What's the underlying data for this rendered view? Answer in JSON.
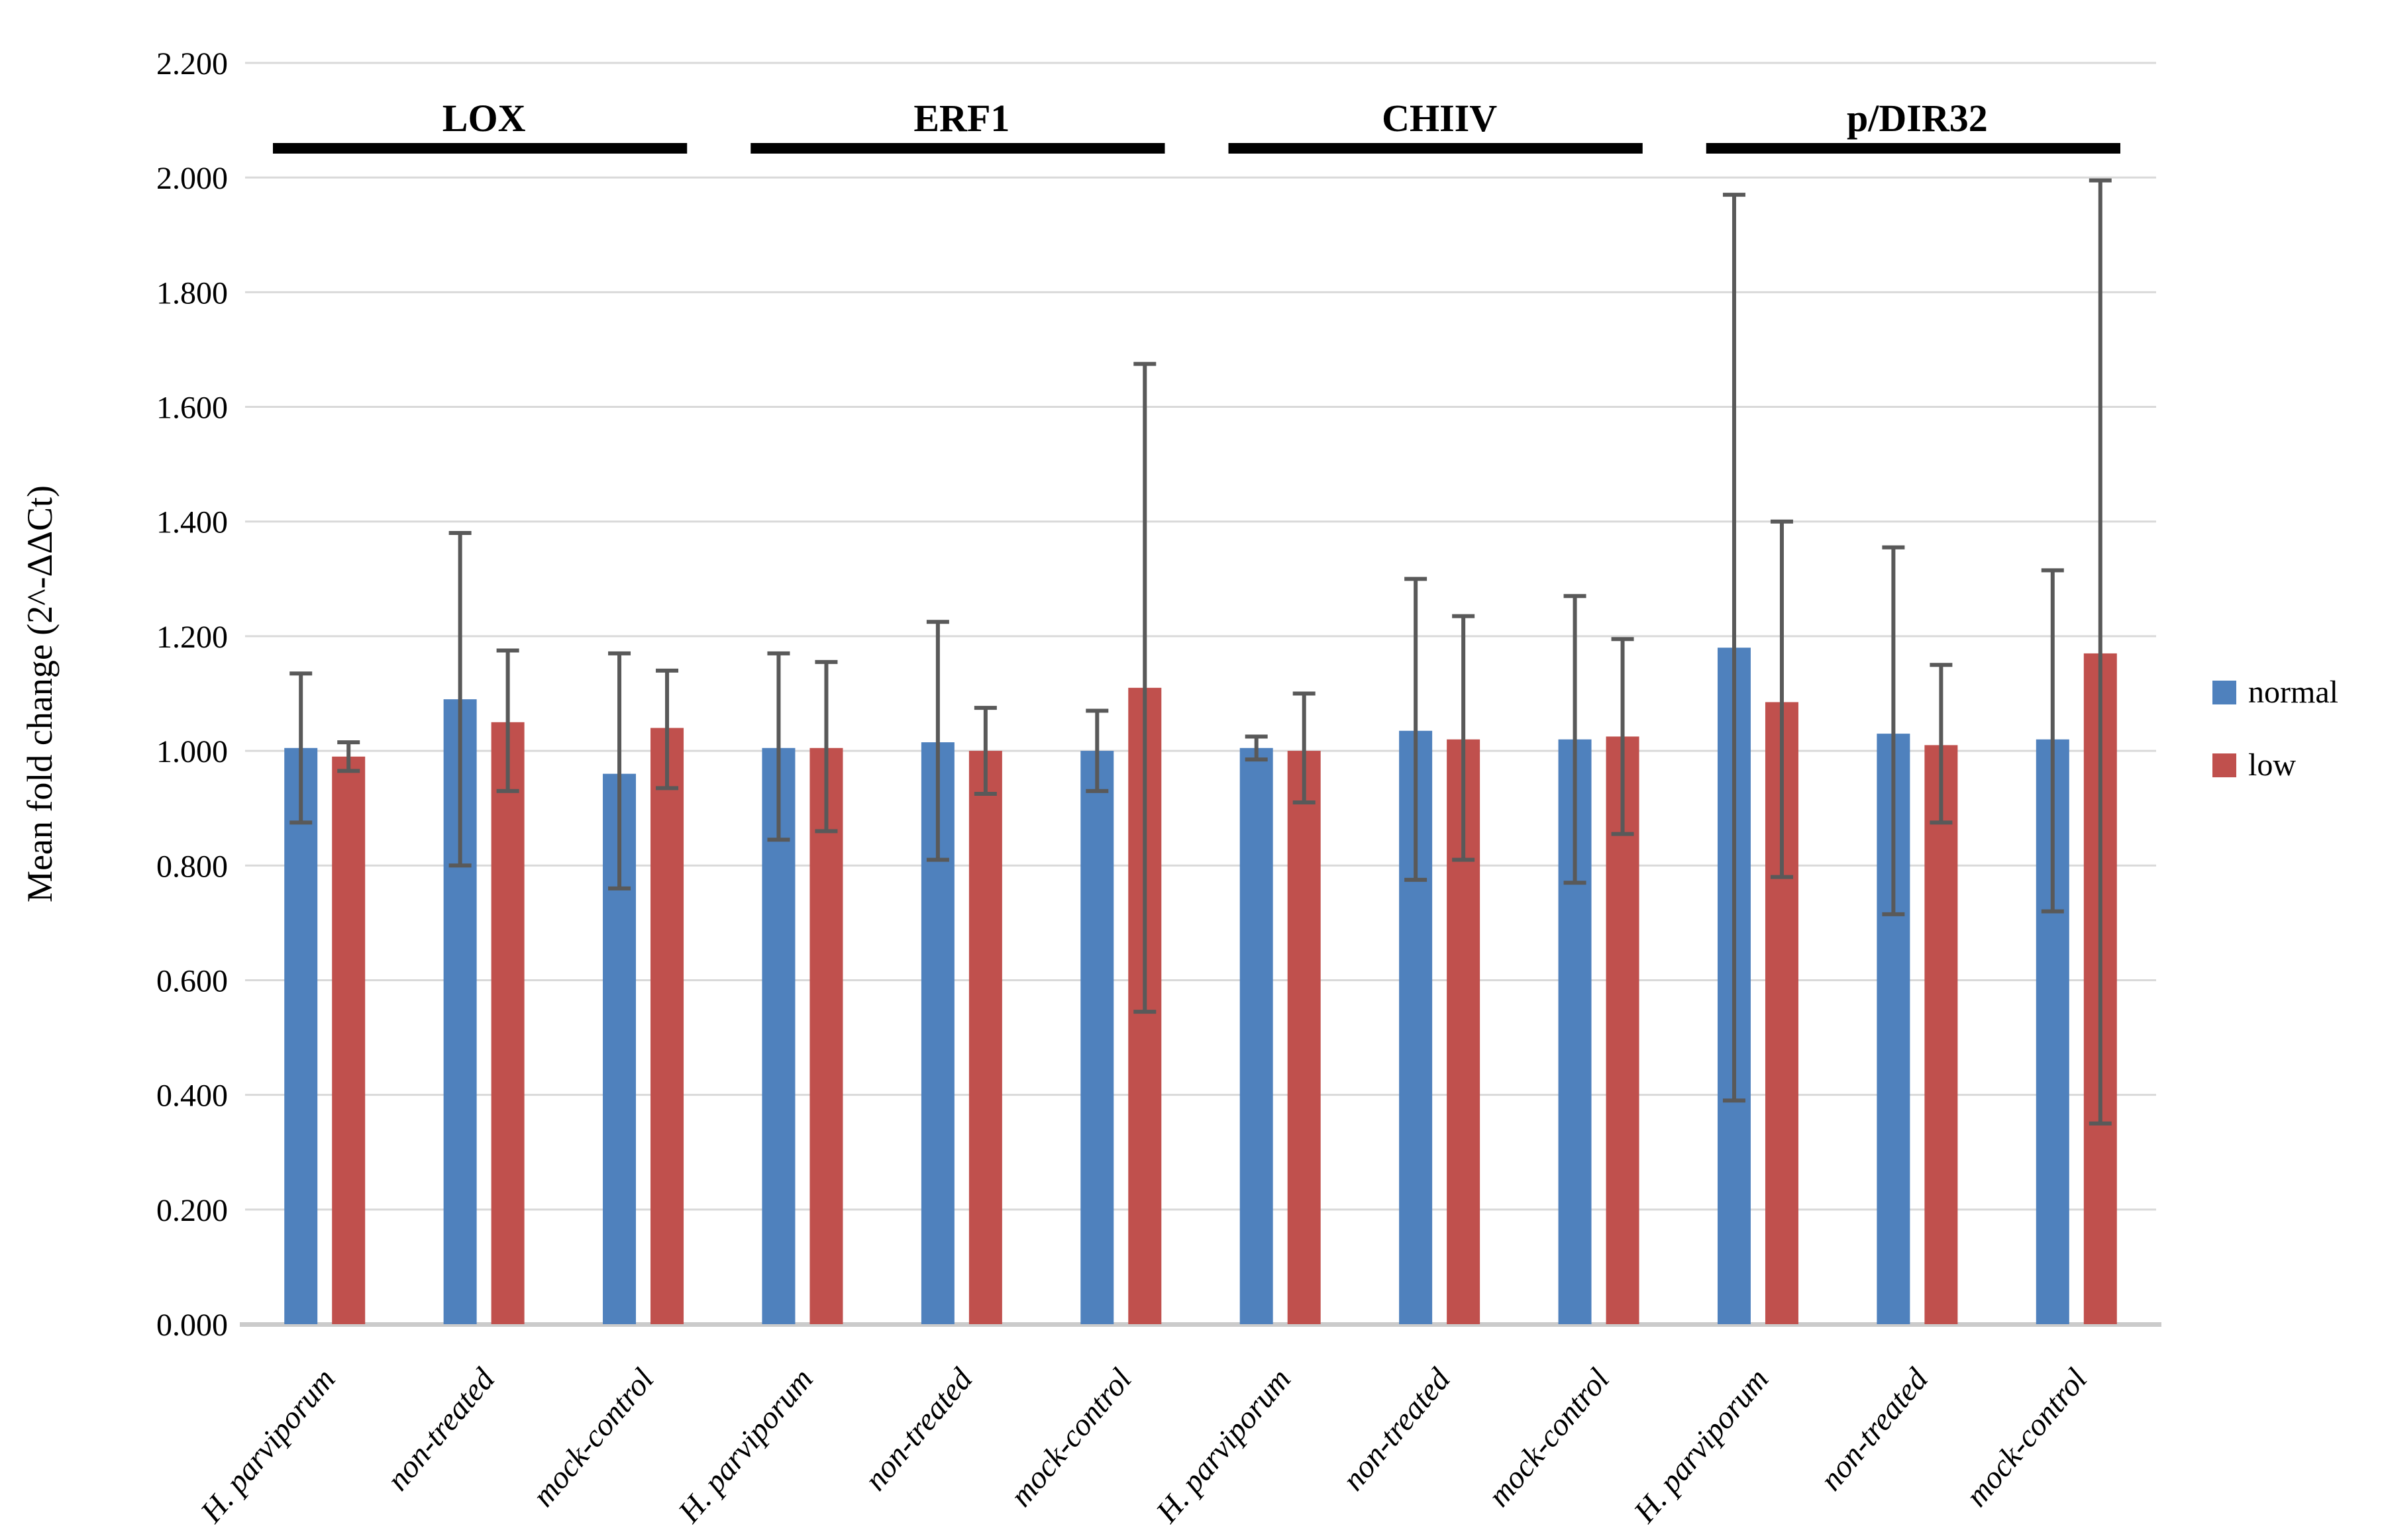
{
  "chart_data": {
    "type": "bar",
    "title": "",
    "ylabel": "Mean fold change (2^-ΔΔCt)",
    "xlabel": "",
    "ylim": [
      0,
      2.2
    ],
    "ytick_step": 0.2,
    "ytick_decimals": 3,
    "grid": true,
    "legend_position": "right",
    "series": [
      {
        "name": "normal",
        "color": "#4F81BD"
      },
      {
        "name": "low",
        "color": "#C0504D"
      }
    ],
    "colors": {
      "error_bar": "#595959",
      "gridline": "#D9D9D9",
      "axis_line": "#CBCBCB",
      "group_underline": "#000000",
      "text": "#000000"
    },
    "groups": [
      {
        "name": "LOX",
        "categories": [
          {
            "label": "H. parviporum",
            "normal": {
              "value": 1.005,
              "err_low": 0.875,
              "err_high": 1.135
            },
            "low": {
              "value": 0.99,
              "err_low": 0.965,
              "err_high": 1.015
            }
          },
          {
            "label": "non-treated",
            "normal": {
              "value": 1.09,
              "err_low": 0.8,
              "err_high": 1.38
            },
            "low": {
              "value": 1.05,
              "err_low": 0.93,
              "err_high": 1.175
            }
          },
          {
            "label": "mock-control",
            "normal": {
              "value": 0.96,
              "err_low": 0.76,
              "err_high": 1.17
            },
            "low": {
              "value": 1.04,
              "err_low": 0.935,
              "err_high": 1.14
            }
          }
        ]
      },
      {
        "name": "ERF1",
        "categories": [
          {
            "label": "H. parviporum",
            "normal": {
              "value": 1.005,
              "err_low": 0.845,
              "err_high": 1.17
            },
            "low": {
              "value": 1.005,
              "err_low": 0.86,
              "err_high": 1.155
            }
          },
          {
            "label": "non-treated",
            "normal": {
              "value": 1.015,
              "err_low": 0.81,
              "err_high": 1.225
            },
            "low": {
              "value": 1.0,
              "err_low": 0.925,
              "err_high": 1.075
            }
          },
          {
            "label": "mock-control",
            "normal": {
              "value": 1.0,
              "err_low": 0.93,
              "err_high": 1.07
            },
            "low": {
              "value": 1.11,
              "err_low": 0.545,
              "err_high": 1.675
            }
          }
        ]
      },
      {
        "name": "CHIIV",
        "categories": [
          {
            "label": "H. parviporum",
            "normal": {
              "value": 1.005,
              "err_low": 0.985,
              "err_high": 1.025
            },
            "low": {
              "value": 1.0,
              "err_low": 0.91,
              "err_high": 1.1
            }
          },
          {
            "label": "non-treated",
            "normal": {
              "value": 1.035,
              "err_low": 0.775,
              "err_high": 1.3
            },
            "low": {
              "value": 1.02,
              "err_low": 0.81,
              "err_high": 1.235
            }
          },
          {
            "label": "mock-control",
            "normal": {
              "value": 1.02,
              "err_low": 0.77,
              "err_high": 1.27
            },
            "low": {
              "value": 1.025,
              "err_low": 0.855,
              "err_high": 1.195
            }
          }
        ]
      },
      {
        "name": "p/DIR32",
        "categories": [
          {
            "label": "H. parviporum",
            "normal": {
              "value": 1.18,
              "err_low": 0.39,
              "err_high": 1.97
            },
            "low": {
              "value": 1.085,
              "err_low": 0.78,
              "err_high": 1.4
            }
          },
          {
            "label": "non-treated",
            "normal": {
              "value": 1.03,
              "err_low": 0.715,
              "err_high": 1.355
            },
            "low": {
              "value": 1.01,
              "err_low": 0.875,
              "err_high": 1.15
            }
          },
          {
            "label": "mock-control",
            "normal": {
              "value": 1.02,
              "err_low": 0.72,
              "err_high": 1.315
            },
            "low": {
              "value": 1.17,
              "err_low": 0.35,
              "err_high": 1.995
            }
          }
        ]
      }
    ]
  }
}
